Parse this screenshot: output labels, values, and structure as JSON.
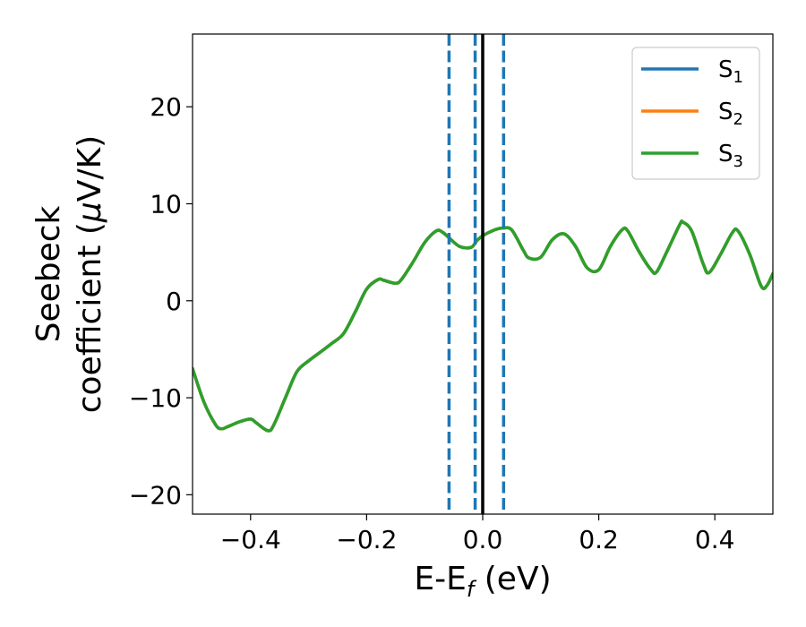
{
  "chart_data": {
    "type": "line",
    "xlabel": "E-E",
    "xlabel_sub": "f",
    "xlabel_unit": " (eV)",
    "ylabel_line1": "Seebeck",
    "ylabel_line2_a": "coefficient  (",
    "ylabel_line2_mu": "μ",
    "ylabel_line2_b": "V/K)",
    "xlim": [
      -0.5,
      0.5
    ],
    "ylim": [
      -22,
      27.5
    ],
    "xticks": [
      -0.4,
      -0.2,
      0.0,
      0.2,
      0.4
    ],
    "xtick_labels": [
      "−0.4",
      "−0.2",
      "0.0",
      "0.2",
      "0.4"
    ],
    "yticks": [
      -20,
      -10,
      0,
      10,
      20
    ],
    "ytick_labels": [
      "−20",
      "−10",
      "0",
      "10",
      "20"
    ],
    "grid": false,
    "legend_position": "top-right",
    "vlines": [
      {
        "x": -0.058,
        "style": "dashed",
        "color": "#1f77b4"
      },
      {
        "x": -0.013,
        "style": "dashed",
        "color": "#1f77b4"
      },
      {
        "x": 0.0,
        "style": "solid",
        "color": "#000000"
      },
      {
        "x": 0.036,
        "style": "dashed",
        "color": "#1f77b4"
      }
    ],
    "x": [
      -0.5,
      -0.48,
      -0.46,
      -0.45,
      -0.44,
      -0.42,
      -0.4,
      -0.39,
      -0.37,
      -0.36,
      -0.34,
      -0.32,
      -0.3,
      -0.28,
      -0.26,
      -0.24,
      -0.22,
      -0.2,
      -0.18,
      -0.17,
      -0.15,
      -0.14,
      -0.12,
      -0.1,
      -0.08,
      -0.07,
      -0.06,
      -0.04,
      -0.02,
      -0.01,
      0.0,
      0.02,
      0.035,
      0.05,
      0.07,
      0.08,
      0.1,
      0.12,
      0.14,
      0.16,
      0.18,
      0.2,
      0.22,
      0.24,
      0.25,
      0.27,
      0.29,
      0.3,
      0.32,
      0.34,
      0.345,
      0.36,
      0.38,
      0.39,
      0.41,
      0.43,
      0.44,
      0.46,
      0.48,
      0.49,
      0.5
    ],
    "series": [
      {
        "name": "S$_1$",
        "label_main": "S",
        "label_sub": "1",
        "color": "#1f77b4",
        "values": [
          -7,
          -10.5,
          -12.8,
          -13.2,
          -13.0,
          -12.5,
          -12.2,
          -12.6,
          -13.4,
          -12.8,
          -10.0,
          -7.3,
          -6.2,
          -5.3,
          -4.4,
          -3.4,
          -1.2,
          1.2,
          2.2,
          2.1,
          1.8,
          2.2,
          4.0,
          6.0,
          7.2,
          7.1,
          6.6,
          5.6,
          5.5,
          6.2,
          6.7,
          7.3,
          7.5,
          7.3,
          5.2,
          4.4,
          4.5,
          6.3,
          6.9,
          5.6,
          3.4,
          3.2,
          5.6,
          7.3,
          7.2,
          5.0,
          3.2,
          3.0,
          5.4,
          7.9,
          8.1,
          7.2,
          3.8,
          2.9,
          4.8,
          7.0,
          7.2,
          4.8,
          1.5,
          1.6,
          2.8
        ]
      },
      {
        "name": "S$_2$",
        "label_main": "S",
        "label_sub": "2",
        "color": "#ff7f0e",
        "values": [
          -7,
          -10.5,
          -12.8,
          -13.2,
          -13.0,
          -12.5,
          -12.2,
          -12.6,
          -13.4,
          -12.8,
          -10.0,
          -7.3,
          -6.2,
          -5.3,
          -4.4,
          -3.4,
          -1.2,
          1.2,
          2.2,
          2.1,
          1.8,
          2.2,
          4.0,
          6.0,
          7.2,
          7.1,
          6.6,
          5.6,
          5.5,
          6.2,
          6.7,
          7.3,
          7.5,
          7.3,
          5.2,
          4.4,
          4.5,
          6.3,
          6.9,
          5.6,
          3.4,
          3.2,
          5.6,
          7.3,
          7.2,
          5.0,
          3.2,
          3.0,
          5.4,
          7.9,
          8.1,
          7.2,
          3.8,
          2.9,
          4.8,
          7.0,
          7.2,
          4.8,
          1.5,
          1.6,
          2.8
        ]
      },
      {
        "name": "S$_3$",
        "label_main": "S",
        "label_sub": "3",
        "color": "#2ca02c",
        "values": [
          -7,
          -10.5,
          -12.8,
          -13.2,
          -13.0,
          -12.5,
          -12.2,
          -12.6,
          -13.4,
          -12.8,
          -10.0,
          -7.3,
          -6.2,
          -5.3,
          -4.4,
          -3.4,
          -1.2,
          1.2,
          2.2,
          2.1,
          1.8,
          2.2,
          4.0,
          6.0,
          7.2,
          7.1,
          6.6,
          5.6,
          5.5,
          6.2,
          6.7,
          7.3,
          7.5,
          7.3,
          5.2,
          4.4,
          4.5,
          6.3,
          6.9,
          5.6,
          3.4,
          3.2,
          5.6,
          7.3,
          7.2,
          5.0,
          3.2,
          3.0,
          5.4,
          7.9,
          8.1,
          7.2,
          3.8,
          2.9,
          4.8,
          7.0,
          7.2,
          4.8,
          1.5,
          1.6,
          2.8
        ]
      }
    ]
  }
}
